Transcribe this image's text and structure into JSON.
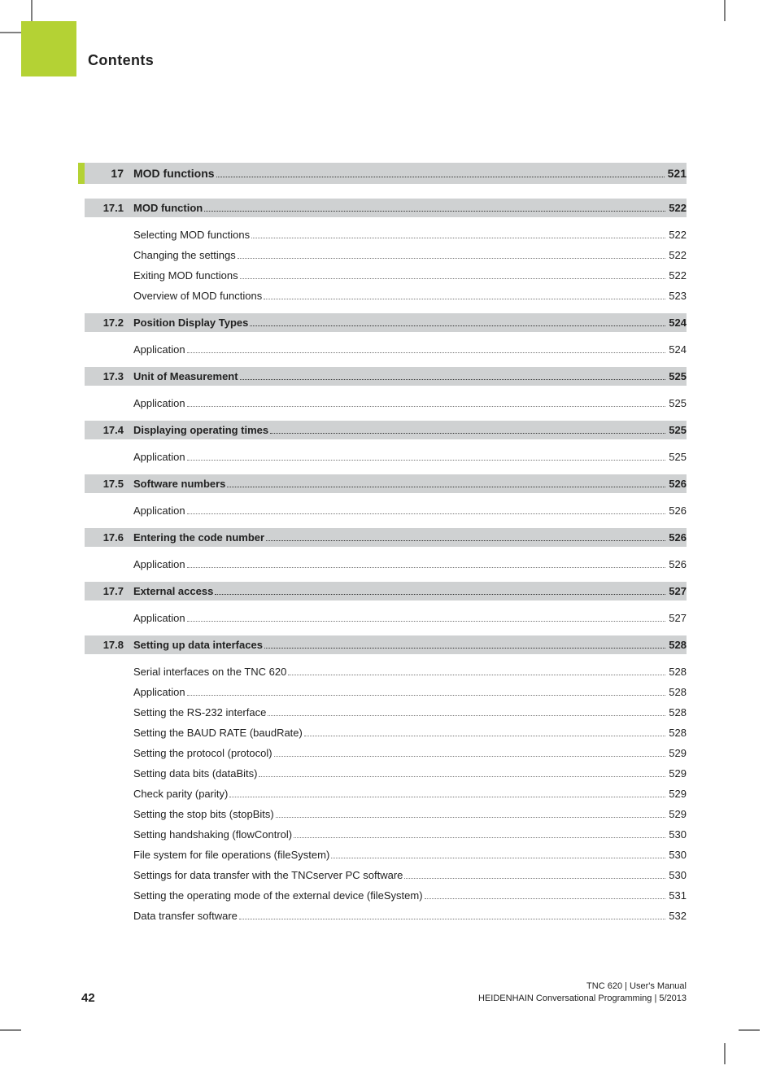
{
  "header_title": "Contents",
  "colors": {
    "accent_green": "#b4d234",
    "row_gray": "#cfd1d2",
    "crop_mark": "#808080",
    "page_bg": "#ffffff",
    "text": "#222222",
    "leader": "#555555"
  },
  "typography": {
    "title_fontsize_pt": 14,
    "body_fontsize_pt": 10,
    "font_family": "Arial, Helvetica, sans-serif"
  },
  "chapter": {
    "num": "17",
    "title": "MOD functions",
    "page": "521"
  },
  "sections": [
    {
      "num": "17.1",
      "title": "MOD function",
      "page": "522",
      "subs": [
        {
          "title": "Selecting MOD functions",
          "page": "522"
        },
        {
          "title": "Changing the settings",
          "page": "522"
        },
        {
          "title": "Exiting MOD functions",
          "page": "522"
        },
        {
          "title": "Overview of MOD functions",
          "page": "523"
        }
      ]
    },
    {
      "num": "17.2",
      "title": "Position Display Types",
      "page": "524",
      "subs": [
        {
          "title": "Application",
          "page": "524"
        }
      ]
    },
    {
      "num": "17.3",
      "title": "Unit of Measurement",
      "page": "525",
      "subs": [
        {
          "title": "Application",
          "page": "525"
        }
      ]
    },
    {
      "num": "17.4",
      "title": "Displaying operating times",
      "page": "525",
      "subs": [
        {
          "title": "Application",
          "page": "525"
        }
      ]
    },
    {
      "num": "17.5",
      "title": "Software numbers",
      "page": "526",
      "subs": [
        {
          "title": "Application",
          "page": "526"
        }
      ]
    },
    {
      "num": "17.6",
      "title": "Entering the code number",
      "page": "526",
      "subs": [
        {
          "title": "Application",
          "page": "526"
        }
      ]
    },
    {
      "num": "17.7",
      "title": "External access",
      "page": "527",
      "subs": [
        {
          "title": "Application",
          "page": "527"
        }
      ]
    },
    {
      "num": "17.8",
      "title": "Setting up data interfaces",
      "page": "528",
      "subs": [
        {
          "title": "Serial interfaces on the TNC 620",
          "page": "528"
        },
        {
          "title": "Application",
          "page": "528"
        },
        {
          "title": "Setting the RS-232 interface",
          "page": "528"
        },
        {
          "title": "Setting the BAUD RATE (baudRate)",
          "page": "528"
        },
        {
          "title": "Setting the protocol (protocol)",
          "page": "529"
        },
        {
          "title": "Setting data bits (dataBits)",
          "page": "529"
        },
        {
          "title": "Check parity (parity)",
          "page": "529"
        },
        {
          "title": "Setting the stop bits (stopBits)",
          "page": "529"
        },
        {
          "title": "Setting handshaking (flowControl)",
          "page": "530"
        },
        {
          "title": "File system for file operations (fileSystem)",
          "page": "530"
        },
        {
          "title": "Settings for data transfer with the TNCserver PC software",
          "page": "530"
        },
        {
          "title": "Setting the operating mode of the external device (fileSystem)",
          "page": "531"
        },
        {
          "title": "Data transfer software",
          "page": "532"
        }
      ]
    }
  ],
  "footer": {
    "page_number": "42",
    "line1": "TNC 620 | User's Manual",
    "line2": "HEIDENHAIN Conversational Programming | 5/2013"
  }
}
